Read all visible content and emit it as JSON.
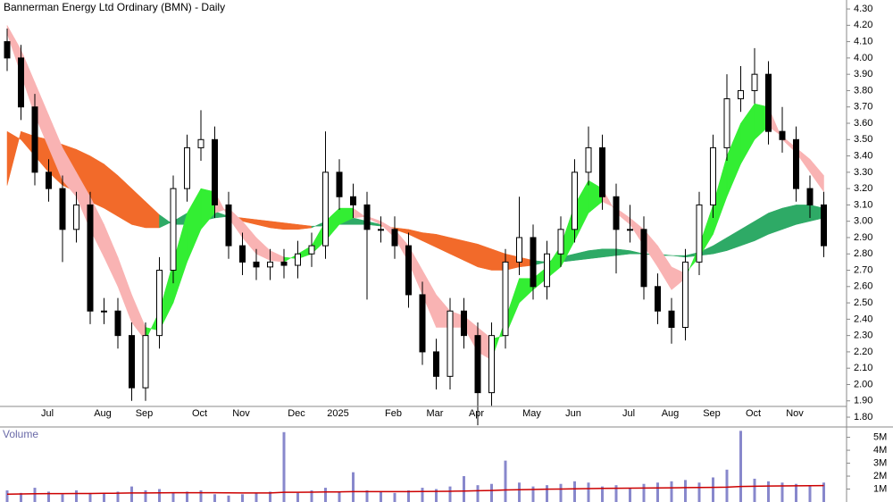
{
  "chart_data": [
    {
      "type": "candlestick",
      "title": "Bannerman Energy Ltd Ordinary (BMN) - Daily",
      "categories": [
        null,
        null,
        "Jul",
        null,
        null,
        null,
        "Aug",
        null,
        null,
        "Sep",
        null,
        null,
        null,
        "Oct",
        null,
        null,
        "Nov",
        null,
        null,
        null,
        "Dec",
        null,
        null,
        "2025",
        null,
        null,
        null,
        "Feb",
        null,
        null,
        "Mar",
        null,
        null,
        "Apr",
        null,
        null,
        null,
        "May",
        null,
        null,
        "Jun",
        null,
        null,
        null,
        "Jul",
        null,
        null,
        "Aug",
        null,
        null,
        "Sep",
        null,
        null,
        "Oct",
        null,
        null,
        "Nov",
        null,
        null,
        null
      ],
      "open": [
        4.1,
        4.0,
        3.7,
        3.3,
        3.2,
        2.95,
        3.1,
        2.45,
        2.45,
        2.3,
        1.98,
        2.3,
        2.7,
        3.2,
        3.45,
        3.5,
        3.1,
        2.85,
        2.75,
        2.72,
        2.75,
        2.73,
        2.8,
        2.85,
        3.3,
        3.15,
        3.1,
        2.95,
        2.95,
        2.85,
        2.55,
        2.2,
        2.05,
        2.45,
        2.3,
        1.95,
        2.3,
        2.75,
        2.9,
        2.6,
        2.8,
        2.95,
        3.3,
        3.45,
        3.15,
        2.95,
        2.95,
        2.6,
        2.45,
        2.35,
        2.75,
        3.1,
        3.45,
        3.75,
        3.8,
        3.9,
        3.55,
        3.5,
        3.2,
        3.1
      ],
      "high": [
        4.18,
        4.08,
        3.78,
        3.38,
        3.28,
        3.18,
        3.18,
        2.53,
        2.53,
        2.38,
        2.38,
        2.78,
        3.28,
        3.53,
        3.68,
        3.58,
        3.18,
        2.93,
        2.83,
        2.83,
        2.83,
        2.88,
        2.93,
        3.55,
        3.38,
        3.23,
        3.18,
        3.03,
        3.03,
        2.93,
        2.63,
        2.28,
        2.53,
        2.53,
        2.38,
        2.38,
        2.83,
        3.15,
        2.98,
        2.88,
        3.03,
        3.38,
        3.58,
        3.53,
        3.23,
        3.1,
        3.03,
        2.68,
        2.53,
        2.83,
        3.18,
        3.53,
        3.9,
        3.95,
        4.06,
        3.98,
        3.7,
        3.58,
        3.28,
        3.18
      ],
      "low": [
        3.92,
        3.62,
        3.22,
        3.12,
        2.75,
        2.87,
        2.37,
        2.37,
        2.22,
        1.9,
        1.9,
        2.22,
        2.62,
        3.12,
        3.37,
        3.02,
        2.77,
        2.67,
        2.64,
        2.64,
        2.65,
        2.65,
        2.72,
        2.77,
        3.07,
        3.02,
        2.52,
        2.87,
        2.77,
        2.47,
        2.12,
        1.97,
        1.97,
        2.22,
        1.75,
        1.87,
        2.22,
        2.67,
        2.52,
        2.52,
        2.72,
        2.87,
        3.22,
        3.07,
        2.68,
        2.87,
        2.52,
        2.37,
        2.25,
        2.27,
        2.67,
        3.02,
        3.37,
        3.67,
        3.72,
        3.47,
        3.42,
        3.12,
        3.02,
        2.78
      ],
      "close": [
        4.0,
        3.7,
        3.3,
        3.2,
        2.95,
        3.1,
        2.45,
        2.45,
        2.3,
        1.98,
        2.3,
        2.7,
        3.2,
        3.45,
        3.5,
        3.1,
        2.85,
        2.75,
        2.72,
        2.75,
        2.73,
        2.8,
        2.85,
        3.3,
        3.15,
        3.1,
        2.95,
        2.95,
        2.85,
        2.55,
        2.2,
        2.05,
        2.45,
        2.3,
        1.95,
        2.3,
        2.75,
        2.9,
        2.6,
        2.8,
        2.95,
        3.3,
        3.45,
        3.15,
        2.95,
        2.95,
        2.6,
        2.45,
        2.35,
        2.75,
        3.1,
        3.45,
        3.75,
        3.8,
        3.9,
        3.55,
        3.5,
        3.2,
        3.1,
        2.85
      ],
      "color": "#000000",
      "rising_fill": "#ffffff",
      "ribbons": [
        {
          "fast": [
            3.55,
            3.5,
            3.4,
            3.3,
            3.22,
            3.18,
            3.12,
            3.08,
            3.03,
            2.98,
            2.96,
            2.96,
            3.0,
            3.05,
            3.07,
            3.06,
            3.03,
            3.0,
            2.98,
            2.96,
            2.95,
            2.95,
            2.96,
            3.0,
            3.03,
            3.02,
            3.0,
            2.98,
            2.95,
            2.92,
            2.88,
            2.84,
            2.8,
            2.76,
            2.72,
            2.7,
            2.7,
            2.72,
            2.73,
            2.75,
            2.78,
            2.8,
            2.82,
            2.83,
            2.83,
            2.82,
            2.8,
            2.8,
            2.79,
            2.79,
            2.81,
            2.85,
            2.9,
            2.95,
            3.0,
            3.05,
            3.08,
            3.1,
            3.1,
            3.08
          ],
          "slow": [
            3.22,
            3.55,
            3.52,
            3.5,
            3.47,
            3.44,
            3.4,
            3.35,
            3.28,
            3.2,
            3.12,
            3.04,
            2.98,
            2.98,
            3.0,
            3.02,
            3.03,
            3.02,
            3.01,
            3.0,
            2.99,
            2.98,
            2.97,
            2.97,
            2.98,
            2.98,
            2.98,
            2.97,
            2.96,
            2.95,
            2.93,
            2.92,
            2.9,
            2.88,
            2.86,
            2.83,
            2.8,
            2.78,
            2.76,
            2.75,
            2.75,
            2.76,
            2.77,
            2.78,
            2.79,
            2.8,
            2.8,
            2.79,
            2.79,
            2.78,
            2.79,
            2.8,
            2.82,
            2.85,
            2.88,
            2.92,
            2.95,
            2.98,
            3.0,
            3.02
          ],
          "up_color": "#2eaa66",
          "down_color": "#f26a2a"
        },
        {
          "fast": [
            4.15,
            3.9,
            3.65,
            3.45,
            3.25,
            3.15,
            2.95,
            2.78,
            2.6,
            2.38,
            2.27,
            2.45,
            2.75,
            3.05,
            3.2,
            3.18,
            3.02,
            2.9,
            2.8,
            2.76,
            2.75,
            2.8,
            2.85,
            3.0,
            3.08,
            3.08,
            3.02,
            2.98,
            2.9,
            2.75,
            2.55,
            2.35,
            2.35,
            2.35,
            2.2,
            2.15,
            2.4,
            2.65,
            2.65,
            2.72,
            2.85,
            3.1,
            3.25,
            3.2,
            3.05,
            2.98,
            2.85,
            2.72,
            2.58,
            2.65,
            2.85,
            3.1,
            3.4,
            3.6,
            3.72,
            3.7,
            3.5,
            3.42,
            3.3,
            3.18
          ],
          "slow": [
            4.2,
            4.05,
            3.85,
            3.65,
            3.45,
            3.3,
            3.15,
            2.98,
            2.78,
            2.55,
            2.35,
            2.33,
            2.5,
            2.75,
            2.95,
            3.05,
            3.08,
            3.0,
            2.9,
            2.82,
            2.78,
            2.77,
            2.8,
            2.88,
            2.98,
            3.02,
            3.03,
            3.0,
            2.95,
            2.85,
            2.7,
            2.55,
            2.45,
            2.42,
            2.35,
            2.28,
            2.3,
            2.5,
            2.58,
            2.65,
            2.72,
            2.88,
            3.05,
            3.12,
            3.08,
            3.02,
            2.95,
            2.85,
            2.72,
            2.68,
            2.78,
            2.92,
            3.15,
            3.35,
            3.5,
            3.58,
            3.52,
            3.45,
            3.38,
            3.28
          ],
          "up_color": "#33ee33",
          "down_color": "#f9b3b3"
        }
      ],
      "ylim": [
        1.74,
        4.355
      ],
      "yticks": [
        {
          "value": 1.8,
          "label": "1.80"
        },
        {
          "value": 1.9,
          "label": "1.90"
        },
        {
          "value": 2.0,
          "label": "2.00"
        },
        {
          "value": 2.1,
          "label": "2.10"
        },
        {
          "value": 2.2,
          "label": "2.20"
        },
        {
          "value": 2.3,
          "label": "2.30"
        },
        {
          "value": 2.4,
          "label": "2.40"
        },
        {
          "value": 2.5,
          "label": "2.50"
        },
        {
          "value": 2.6,
          "label": "2.60"
        },
        {
          "value": 2.7,
          "label": "2.70"
        },
        {
          "value": 2.8,
          "label": "2.80"
        },
        {
          "value": 2.9,
          "label": "2.90"
        },
        {
          "value": 3.0,
          "label": "3.00"
        },
        {
          "value": 3.1,
          "label": "3.10"
        },
        {
          "value": 3.2,
          "label": "3.20"
        },
        {
          "value": 3.3,
          "label": "3.30"
        },
        {
          "value": 3.4,
          "label": "3.40"
        },
        {
          "value": 3.5,
          "label": "3.50"
        },
        {
          "value": 3.6,
          "label": "3.60"
        },
        {
          "value": 3.7,
          "label": "3.70"
        },
        {
          "value": 3.8,
          "label": "3.80"
        },
        {
          "value": 3.9,
          "label": "3.90"
        },
        {
          "value": 4.0,
          "label": "4.00"
        },
        {
          "value": 4.1,
          "label": "4.10"
        },
        {
          "value": 4.2,
          "label": "4.20"
        },
        {
          "value": 4.3,
          "label": "4.30"
        }
      ],
      "grid": false
    },
    {
      "type": "bar",
      "title": "Volume",
      "values": [
        900000,
        700000,
        1100000,
        800000,
        600000,
        900000,
        700000,
        650000,
        800000,
        1200000,
        900000,
        1000000,
        700000,
        800000,
        900000,
        600000,
        500000,
        600000,
        700000,
        800000,
        5400000,
        700000,
        900000,
        1100000,
        800000,
        2300000,
        900000,
        800000,
        700000,
        900000,
        1100000,
        1000000,
        1200000,
        2000000,
        1300000,
        1400000,
        3200000,
        1500000,
        1200000,
        1300000,
        1400000,
        1600000,
        1500000,
        1200000,
        1300000,
        1100000,
        1400000,
        1500000,
        1600000,
        1700000,
        1500000,
        1900000,
        2500000,
        5500000,
        1800000,
        1600000,
        1500000,
        1400000,
        1300000,
        1500000
      ],
      "color": "#8888cc",
      "average": {
        "color": "#cc0000",
        "values": [
          600000,
          620000,
          640000,
          650000,
          650000,
          660000,
          660000,
          670000,
          680000,
          700000,
          700000,
          710000,
          720000,
          720000,
          720000,
          720000,
          710000,
          700000,
          700000,
          700000,
          750000,
          750000,
          760000,
          780000,
          780000,
          800000,
          800000,
          800000,
          800000,
          800000,
          810000,
          820000,
          830000,
          850000,
          870000,
          890000,
          930000,
          950000,
          970000,
          990000,
          1000000,
          1020000,
          1040000,
          1050000,
          1060000,
          1070000,
          1080000,
          1090000,
          1100000,
          1110000,
          1120000,
          1130000,
          1150000,
          1200000,
          1220000,
          1230000,
          1240000,
          1250000,
          1260000,
          1270000
        ]
      },
      "ylim": [
        0,
        5800000
      ],
      "yticks": [
        {
          "value": 1000000,
          "label": "1M"
        },
        {
          "value": 2000000,
          "label": "2M"
        },
        {
          "value": 3000000,
          "label": "3M"
        },
        {
          "value": 4000000,
          "label": "4M"
        },
        {
          "value": 5000000,
          "label": "5M"
        }
      ]
    }
  ]
}
